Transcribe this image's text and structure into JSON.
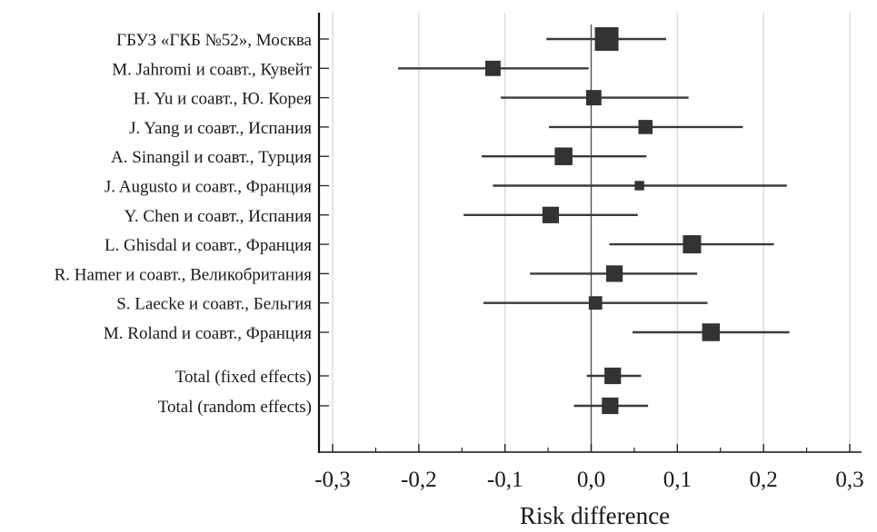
{
  "chart_data": {
    "type": "forest",
    "title": "",
    "xlabel": "Risk difference",
    "ylabel": "",
    "xlim": [
      -0.3,
      0.3
    ],
    "xticks": [
      -0.3,
      -0.2,
      -0.1,
      0.0,
      0.1,
      0.2,
      0.3
    ],
    "xtick_labels": [
      "-0,3",
      "-0,2",
      "-0,1",
      "0,0",
      "0,1",
      "0,2",
      "0,3"
    ],
    "minor_ticks": [
      -0.25,
      -0.15,
      -0.05,
      0.05,
      0.15,
      0.25
    ],
    "grid": true,
    "reference_line": 0.0,
    "marker_color": "#333333",
    "line_color": "#3a3a3a",
    "grid_color": "#d4d4d4",
    "studies": [
      {
        "label": "ГБУЗ «ГКБ №52», Москва",
        "estimate": 0.018,
        "ci_low": -0.052,
        "ci_high": 0.087,
        "weight": 1.0
      },
      {
        "label": "M. Jahromi и соавт., Кувейт",
        "estimate": -0.114,
        "ci_low": -0.224,
        "ci_high": -0.003,
        "weight": 0.65
      },
      {
        "label": "H. Yu и соавт., Ю. Корея",
        "estimate": 0.003,
        "ci_low": -0.105,
        "ci_high": 0.113,
        "weight": 0.65
      },
      {
        "label": "J. Yang и соавт., Испания",
        "estimate": 0.063,
        "ci_low": -0.049,
        "ci_high": 0.176,
        "weight": 0.6
      },
      {
        "label": "A. Sinangil и соавт., Турция",
        "estimate": -0.032,
        "ci_low": -0.127,
        "ci_high": 0.064,
        "weight": 0.75
      },
      {
        "label": "J. Augusto и соавт., Франция",
        "estimate": 0.056,
        "ci_low": -0.114,
        "ci_high": 0.227,
        "weight": 0.4
      },
      {
        "label": "Y. Chen и соавт., Испания",
        "estimate": -0.047,
        "ci_low": -0.148,
        "ci_high": 0.054,
        "weight": 0.7
      },
      {
        "label": "L. Ghisdal и соавт., Франция",
        "estimate": 0.117,
        "ci_low": 0.021,
        "ci_high": 0.212,
        "weight": 0.77
      },
      {
        "label": "R. Hamer и соавт., Великобритания",
        "estimate": 0.027,
        "ci_low": -0.071,
        "ci_high": 0.123,
        "weight": 0.7
      },
      {
        "label": "S. Laecke и соавт., Бельгия",
        "estimate": 0.005,
        "ci_low": -0.125,
        "ci_high": 0.135,
        "weight": 0.57
      },
      {
        "label": "M. Roland и соавт., Франция",
        "estimate": 0.139,
        "ci_low": 0.048,
        "ci_high": 0.23,
        "weight": 0.75
      }
    ],
    "totals": [
      {
        "label": "Total (fixed effects)",
        "estimate": 0.025,
        "ci_low": -0.005,
        "ci_high": 0.058,
        "weight": 0.7
      },
      {
        "label": "Total (random effects)",
        "estimate": 0.022,
        "ci_low": -0.02,
        "ci_high": 0.066,
        "weight": 0.7
      }
    ]
  }
}
